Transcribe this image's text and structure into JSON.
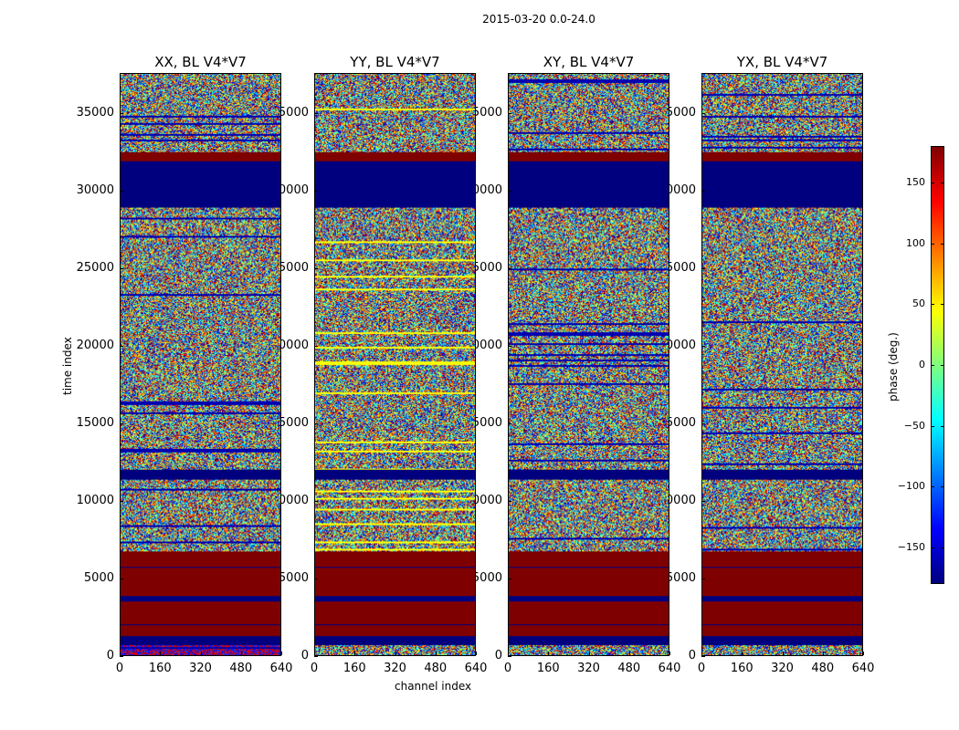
{
  "figure_title": "2015-03-20 0.0-24.0",
  "chart_data": [
    {
      "type": "heatmap",
      "title": "XX, BL V4*V7",
      "ylabel": "time index",
      "xlabel": "",
      "xlim": [
        0,
        640
      ],
      "ylim": [
        0,
        37600
      ],
      "seed": 11,
      "noise_bias": "blue-red"
    },
    {
      "type": "heatmap",
      "title": "YY, BL V4*V7",
      "ylabel": "",
      "xlabel": "channel index",
      "xlim": [
        0,
        640
      ],
      "ylim": [
        0,
        37600
      ],
      "seed": 23,
      "noise_bias": "yellow"
    },
    {
      "type": "heatmap",
      "title": "XY, BL V4*V7",
      "ylabel": "",
      "xlabel": "",
      "xlim": [
        0,
        640
      ],
      "ylim": [
        0,
        37600
      ],
      "seed": 37,
      "noise_bias": "none"
    },
    {
      "type": "heatmap",
      "title": "YX, BL V4*V7",
      "ylabel": "",
      "xlabel": "",
      "xlim": [
        0,
        640
      ],
      "ylim": [
        0,
        37600
      ],
      "seed": 53,
      "noise_bias": "none"
    }
  ],
  "time_bands": [
    {
      "from": 0,
      "to": 590,
      "value": "noise"
    },
    {
      "from": 590,
      "to": 1180,
      "value": -180
    },
    {
      "from": 1180,
      "to": 1900,
      "value": 180
    },
    {
      "from": 1900,
      "to": 1980,
      "value": -180
    },
    {
      "from": 1980,
      "to": 3470,
      "value": 180
    },
    {
      "from": 3470,
      "to": 3820,
      "value": -180
    },
    {
      "from": 3820,
      "to": 5600,
      "value": 180
    },
    {
      "from": 5600,
      "to": 5700,
      "value": -180
    },
    {
      "from": 5700,
      "to": 6700,
      "value": 180
    },
    {
      "from": 6700,
      "to": 11300,
      "value": "noise"
    },
    {
      "from": 11300,
      "to": 12000,
      "value": -180
    },
    {
      "from": 12000,
      "to": 28900,
      "value": "noise"
    },
    {
      "from": 28900,
      "to": 31900,
      "value": -180
    },
    {
      "from": 31900,
      "to": 32500,
      "value": 180
    },
    {
      "from": 32500,
      "to": 37600,
      "value": "noise"
    }
  ],
  "x_ticks": [
    "0",
    "160",
    "320",
    "480",
    "640"
  ],
  "x_tick_values": [
    0,
    160,
    320,
    480,
    640
  ],
  "y_ticks": [
    "0",
    "5000",
    "10000",
    "15000",
    "20000",
    "25000",
    "30000",
    "35000"
  ],
  "y_tick_values": [
    0,
    5000,
    10000,
    15000,
    20000,
    25000,
    30000,
    35000
  ],
  "colorbar": {
    "label": "phase (deg.)",
    "range": [
      -180,
      180
    ],
    "ticks": [
      "150",
      "100",
      "50",
      "0",
      "−50",
      "−100",
      "−150"
    ],
    "tick_values": [
      150,
      100,
      50,
      0,
      -50,
      -100,
      -150
    ]
  }
}
